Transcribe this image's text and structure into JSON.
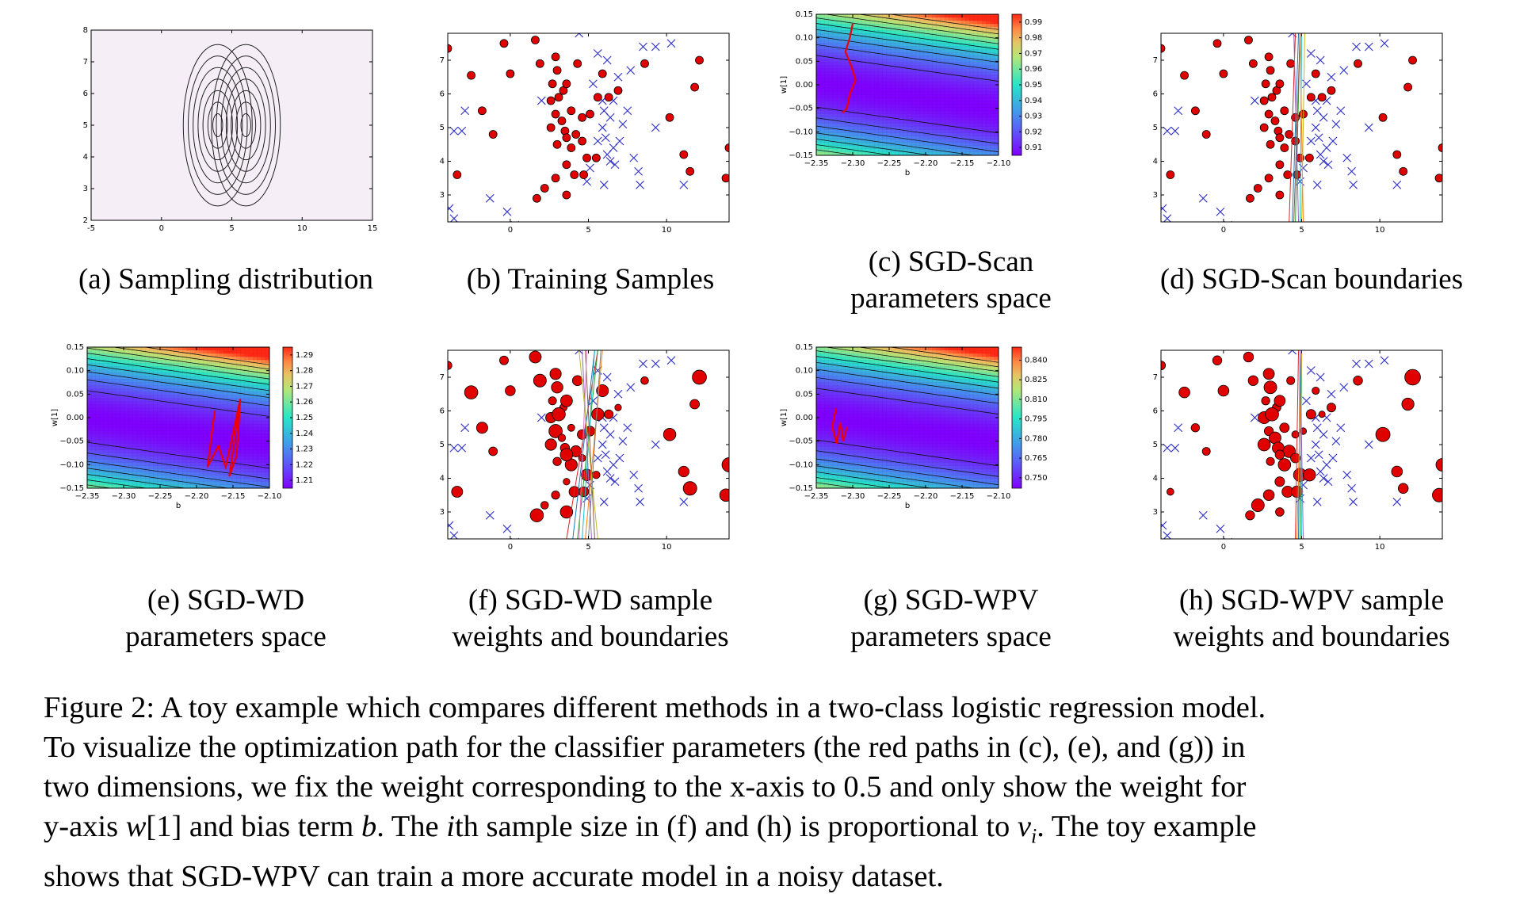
{
  "panels": [
    {
      "id": "a",
      "caption": [
        "(a) Sampling distribution"
      ],
      "chart_data": {
        "type": "contour",
        "title": "",
        "xlabel": "",
        "ylabel": "",
        "xlim": [
          -5,
          15
        ],
        "ylim": [
          2,
          8
        ],
        "xticks": [
          "-5",
          "0",
          "5",
          "10",
          "15"
        ],
        "yticks": [
          "2",
          "3",
          "4",
          "5",
          "6",
          "7",
          "8"
        ],
        "gaussians": [
          {
            "center": [
              4,
              5
            ],
            "sx": 1.0,
            "sy": 1.0
          },
          {
            "center": [
              6,
              5
            ],
            "sx": 1.0,
            "sy": 1.0
          }
        ],
        "levels": 7,
        "colors": {
          "background": "#f5eef7",
          "contour": "#222222"
        }
      }
    },
    {
      "id": "b",
      "caption": [
        "(b) Training Samples"
      ],
      "chart_data": {
        "type": "scatter",
        "title": "",
        "xlabel": "",
        "ylabel": "",
        "xlim": [
          -4,
          14
        ],
        "ylim": [
          2.2,
          7.8
        ],
        "xticks": [
          "0",
          "5",
          "10"
        ],
        "xtick_values": [
          0,
          5,
          10
        ],
        "yticks": [
          "3",
          "4",
          "5",
          "6",
          "7"
        ],
        "ytick_values": [
          3,
          4,
          5,
          6,
          7
        ],
        "colors": {
          "class0": "#e00000",
          "class1": "#3333cc"
        }
      }
    },
    {
      "id": "c",
      "caption": [
        "(c) SGD-Scan",
        "parameters space"
      ],
      "chart_data": {
        "type": "heatmap",
        "title": "",
        "xlabel": "b",
        "ylabel": "w[1]",
        "xlim": [
          -2.35,
          -2.1
        ],
        "ylim": [
          -0.15,
          0.15
        ],
        "xticks": [
          "−2.35",
          "−2.30",
          "−2.25",
          "−2.20",
          "−2.15",
          "−2.10"
        ],
        "xtick_values": [
          -2.35,
          -2.3,
          -2.25,
          -2.2,
          -2.15,
          -2.1
        ],
        "yticks": [
          "−0.15",
          "−0.10",
          "−0.05",
          "0.00",
          "0.05",
          "0.10",
          "0.15"
        ],
        "ytick_values": [
          -0.15,
          -0.1,
          -0.05,
          0.0,
          0.05,
          0.1,
          0.15
        ],
        "colorbar_ticks": [
          "0.91",
          "0.92",
          "0.93",
          "0.94",
          "0.95",
          "0.96",
          "0.97",
          "0.98",
          "0.99"
        ],
        "colorbar_values": [
          0.91,
          0.92,
          0.93,
          0.94,
          0.95,
          0.96,
          0.97,
          0.98,
          0.99
        ],
        "colorbar_range": [
          0.905,
          0.995
        ],
        "min_w_center": -0.02,
        "path": [
          [
            -2.3,
            0.13
          ],
          [
            -2.304,
            0.1
          ],
          [
            -2.31,
            0.07
          ],
          [
            -2.302,
            0.04
          ],
          [
            -2.296,
            0.01
          ],
          [
            -2.304,
            -0.02
          ],
          [
            -2.308,
            -0.05
          ],
          [
            -2.314,
            -0.06
          ]
        ]
      }
    },
    {
      "id": "d",
      "caption": [
        "(d) SGD-Scan boundaries"
      ],
      "chart_data": {
        "type": "scatter",
        "title": "",
        "xlabel": "",
        "ylabel": "",
        "xlim": [
          -4,
          14
        ],
        "ylim": [
          2.2,
          7.8
        ],
        "xticks": [
          "0",
          "5",
          "10"
        ],
        "xtick_values": [
          0,
          5,
          10
        ],
        "yticks": [
          "3",
          "4",
          "5",
          "6",
          "7"
        ],
        "ytick_values": [
          3,
          4,
          5,
          6,
          7
        ],
        "boundaries": [
          [
            4.2,
            4.6
          ],
          [
            4.4,
            4.8
          ],
          [
            4.6,
            4.9
          ],
          [
            4.9,
            5.0
          ],
          [
            5.1,
            4.9
          ],
          [
            4.8,
            4.5
          ],
          [
            4.5,
            4.9
          ],
          [
            5.0,
            5.2
          ]
        ],
        "colors": {
          "class0": "#e00000",
          "class1": "#3333cc"
        }
      }
    },
    {
      "id": "e",
      "caption": [
        "(e) SGD-WD",
        "parameters space"
      ],
      "chart_data": {
        "type": "heatmap",
        "title": "",
        "xlabel": "b",
        "ylabel": "w[1]",
        "xlim": [
          -2.35,
          -2.1
        ],
        "ylim": [
          -0.15,
          0.15
        ],
        "xticks": [
          "−2.35",
          "−2.30",
          "−2.25",
          "−2.20",
          "−2.15",
          "−2.10"
        ],
        "xtick_values": [
          -2.35,
          -2.3,
          -2.25,
          -2.2,
          -2.15,
          -2.1
        ],
        "yticks": [
          "−0.15",
          "−0.10",
          "−0.05",
          "0.00",
          "0.05",
          "0.10",
          "0.15"
        ],
        "ytick_values": [
          -0.15,
          -0.1,
          -0.05,
          0.0,
          0.05,
          0.1,
          0.15
        ],
        "colorbar_ticks": [
          "1.21",
          "1.22",
          "1.23",
          "1.24",
          "1.25",
          "1.26",
          "1.27",
          "1.28",
          "1.29"
        ],
        "colorbar_values": [
          1.21,
          1.22,
          1.23,
          1.24,
          1.25,
          1.26,
          1.27,
          1.28,
          1.29
        ],
        "colorbar_range": [
          1.205,
          1.295
        ],
        "min_w_center": -0.025,
        "path": [
          [
            -2.175,
            0.015
          ],
          [
            -2.185,
            -0.105
          ],
          [
            -2.17,
            -0.06
          ],
          [
            -2.16,
            -0.105
          ],
          [
            -2.14,
            0.04
          ],
          [
            -2.155,
            -0.125
          ],
          [
            -2.145,
            -0.08
          ],
          [
            -2.14,
            0.04
          ]
        ]
      }
    },
    {
      "id": "f",
      "caption": [
        "(f) SGD-WD sample",
        "weights and boundaries"
      ],
      "chart_data": {
        "type": "scatter",
        "title": "",
        "xlabel": "",
        "ylabel": "",
        "xlim": [
          -4,
          14
        ],
        "ylim": [
          2.2,
          7.8
        ],
        "xticks": [
          "0",
          "5",
          "10"
        ],
        "xtick_values": [
          0,
          5,
          10
        ],
        "yticks": [
          "3",
          "4",
          "5",
          "6",
          "7"
        ],
        "ytick_values": [
          3,
          4,
          5,
          6,
          7
        ],
        "boundaries": [
          [
            3.6,
            5.6
          ],
          [
            4.0,
            5.4
          ],
          [
            4.3,
            5.6
          ],
          [
            4.6,
            5.4
          ],
          [
            4.8,
            5.9
          ],
          [
            5.2,
            4.6
          ],
          [
            5.4,
            4.8
          ],
          [
            5.6,
            4.4
          ],
          [
            4.4,
            4.9
          ],
          [
            5.0,
            5.8
          ]
        ],
        "weighted": true,
        "colors": {
          "class0": "#e00000",
          "class1": "#3333cc"
        }
      }
    },
    {
      "id": "g",
      "caption": [
        "(g) SGD-WPV",
        "parameters space"
      ],
      "chart_data": {
        "type": "heatmap",
        "title": "",
        "xlabel": "b",
        "ylabel": "w[1]",
        "xlim": [
          -2.35,
          -2.1
        ],
        "ylim": [
          -0.15,
          0.15
        ],
        "xticks": [
          "−2.35",
          "−2.30",
          "−2.25",
          "−2.20",
          "−2.15",
          "−2.10"
        ],
        "xtick_values": [
          -2.35,
          -2.3,
          -2.25,
          -2.2,
          -2.15,
          -2.1
        ],
        "yticks": [
          "−0.15",
          "−0.10",
          "−0.05",
          "0.00",
          "0.05",
          "0.10",
          "0.15"
        ],
        "ytick_values": [
          -0.15,
          -0.1,
          -0.05,
          0.0,
          0.05,
          0.1,
          0.15
        ],
        "colorbar_ticks": [
          "0.750",
          "0.765",
          "0.780",
          "0.795",
          "0.810",
          "0.825",
          "0.840"
        ],
        "colorbar_values": [
          0.75,
          0.765,
          0.78,
          0.795,
          0.81,
          0.825,
          0.84
        ],
        "colorbar_range": [
          0.742,
          0.85
        ],
        "min_w_center": -0.02,
        "path": [
          [
            -2.323,
            0.02
          ],
          [
            -2.328,
            -0.02
          ],
          [
            -2.322,
            -0.055
          ],
          [
            -2.317,
            -0.01
          ],
          [
            -2.313,
            -0.05
          ],
          [
            -2.308,
            -0.02
          ]
        ]
      }
    },
    {
      "id": "h",
      "caption": [
        "(h) SGD-WPV sample",
        "weights and boundaries"
      ],
      "chart_data": {
        "type": "scatter",
        "title": "",
        "xlabel": "",
        "ylabel": "",
        "xlim": [
          -4,
          14
        ],
        "ylim": [
          2.2,
          7.8
        ],
        "xticks": [
          "0",
          "5",
          "10"
        ],
        "xtick_values": [
          0,
          5,
          10
        ],
        "yticks": [
          "3",
          "4",
          "5",
          "6",
          "7"
        ],
        "ytick_values": [
          3,
          4,
          5,
          6,
          7
        ],
        "boundaries": [
          [
            4.6,
            4.8
          ],
          [
            4.8,
            4.9
          ],
          [
            4.9,
            5.0
          ],
          [
            5.0,
            4.9
          ],
          [
            4.7,
            5.0
          ],
          [
            5.1,
            4.9
          ]
        ],
        "weighted": true,
        "colors": {
          "class0": "#e00000",
          "class1": "#3333cc"
        }
      }
    }
  ],
  "samples": {
    "red": [
      [
        -4.0,
        7.35
      ],
      [
        -2.5,
        6.55
      ],
      [
        -1.8,
        5.5
      ],
      [
        -3.4,
        3.6
      ],
      [
        -1.1,
        4.8
      ],
      [
        0,
        6.6
      ],
      [
        -0.4,
        7.5
      ],
      [
        1.6,
        7.6
      ],
      [
        1.9,
        6.9
      ],
      [
        2.9,
        7.1
      ],
      [
        3.0,
        6.7
      ],
      [
        2.7,
        6.3
      ],
      [
        3.4,
        6.1
      ],
      [
        2.6,
        5.8
      ],
      [
        2.9,
        5.4
      ],
      [
        3.3,
        5.2
      ],
      [
        3.6,
        6.3
      ],
      [
        4.3,
        6.9
      ],
      [
        3.9,
        5.5
      ],
      [
        2.6,
        5.0
      ],
      [
        3.0,
        4.5
      ],
      [
        3.5,
        4.9
      ],
      [
        3.9,
        4.4
      ],
      [
        4.2,
        4.8
      ],
      [
        4.6,
        5.3
      ],
      [
        5.1,
        5.4
      ],
      [
        4.6,
        4.6
      ],
      [
        4.9,
        4.1
      ],
      [
        5.5,
        4.1
      ],
      [
        3.6,
        3.9
      ],
      [
        4.1,
        3.6
      ],
      [
        2.9,
        3.5
      ],
      [
        3.6,
        3.0
      ],
      [
        4.7,
        3.6
      ],
      [
        2.2,
        3.2
      ],
      [
        1.7,
        2.9
      ],
      [
        5.6,
        5.9
      ],
      [
        6.3,
        5.9
      ],
      [
        5.9,
        6.6
      ],
      [
        6.9,
        6.1
      ],
      [
        8.6,
        6.9
      ],
      [
        12.1,
        7.0
      ],
      [
        10.2,
        5.3
      ],
      [
        11.8,
        6.2
      ],
      [
        11.1,
        4.2
      ],
      [
        11.5,
        3.7
      ],
      [
        13.8,
        3.5
      ],
      [
        14.0,
        4.4
      ],
      [
        3.1,
        5.9
      ],
      [
        3.6,
        4.7
      ]
    ],
    "blue": [
      [
        -3.6,
        4.9
      ],
      [
        -3.1,
        4.9
      ],
      [
        -2.9,
        5.5
      ],
      [
        -3.9,
        2.6
      ],
      [
        -3.6,
        2.3
      ],
      [
        -1.3,
        2.9
      ],
      [
        -0.2,
        2.5
      ],
      [
        0.3,
        2.1
      ],
      [
        4.4,
        7.8
      ],
      [
        5.6,
        7.2
      ],
      [
        6.2,
        7.0
      ],
      [
        6.9,
        6.5
      ],
      [
        5.3,
        6.3
      ],
      [
        6.0,
        5.5
      ],
      [
        6.4,
        5.3
      ],
      [
        5.9,
        5.0
      ],
      [
        5.6,
        4.6
      ],
      [
        6.6,
        4.4
      ],
      [
        6.1,
        4.7
      ],
      [
        6.4,
        4.0
      ],
      [
        7.0,
        4.6
      ],
      [
        7.9,
        4.1
      ],
      [
        6.7,
        3.9
      ],
      [
        8.2,
        3.7
      ],
      [
        9.3,
        5.0
      ],
      [
        8.5,
        7.4
      ],
      [
        9.3,
        7.4
      ],
      [
        10.3,
        7.5
      ],
      [
        7.7,
        6.7
      ],
      [
        2.0,
        5.8
      ],
      [
        7.2,
        5.1
      ],
      [
        8.3,
        3.3
      ],
      [
        4.9,
        3.4
      ],
      [
        6.0,
        3.3
      ],
      [
        11.1,
        3.3
      ],
      [
        6.6,
        5.8
      ],
      [
        7.5,
        5.5
      ],
      [
        5.9,
        5.8
      ],
      [
        6.2,
        4.2
      ],
      [
        5.1,
        3.8
      ]
    ]
  },
  "figure_caption": {
    "lines": [
      [
        {
          "t": "Figure 2: A toy example which compares different methods in a two-class logistic regression model."
        }
      ],
      [
        {
          "t": "To visualize the optimization path for the classifier parameters (the red paths in (c), (e), and (g)) in"
        }
      ],
      [
        {
          "t": "two dimensions, we fix the weight corresponding to the x-axis to 0.5 and only show the weight for"
        }
      ],
      [
        {
          "t": "y-axis "
        },
        {
          "t": "w",
          "m": true
        },
        {
          "t": "[1] and bias term "
        },
        {
          "t": "b",
          "m": true
        },
        {
          "t": ". The "
        },
        {
          "t": "i",
          "m": true
        },
        {
          "t": "th sample size in (f) and (h) is proportional to "
        },
        {
          "t": "v",
          "m": true
        },
        {
          "t": "i",
          "m": true,
          "sub": true
        },
        {
          "t": ". The toy example"
        }
      ],
      [
        {
          "t": "shows that SGD-WPV can train a more accurate model in a noisy dataset."
        }
      ]
    ]
  }
}
